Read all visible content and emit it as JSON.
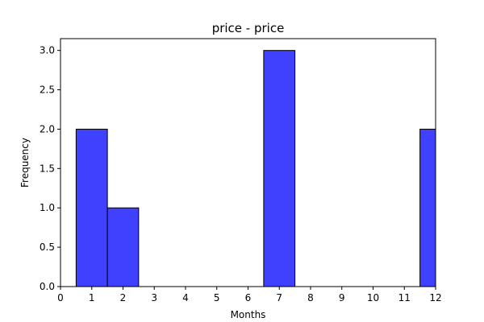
{
  "chart_data": {
    "type": "bar",
    "title": "price - price",
    "xlabel": "Months",
    "ylabel": "Frequency",
    "xlim": [
      0,
      12
    ],
    "ylim": [
      0,
      3.15
    ],
    "bar_width": 1,
    "bins": [
      {
        "center": 1,
        "value": 2
      },
      {
        "center": 2,
        "value": 1
      },
      {
        "center": 7,
        "value": 3
      },
      {
        "center": 12,
        "value": 2
      }
    ],
    "x_ticks": [
      "0",
      "1",
      "2",
      "3",
      "4",
      "5",
      "6",
      "7",
      "8",
      "9",
      "10",
      "11",
      "12"
    ],
    "y_ticks": [
      "0.0",
      "0.5",
      "1.0",
      "1.5",
      "2.0",
      "2.5",
      "3.0"
    ],
    "grid": false,
    "legend": "none",
    "bar_color": "#4040ff",
    "edge_color": "#000000"
  }
}
